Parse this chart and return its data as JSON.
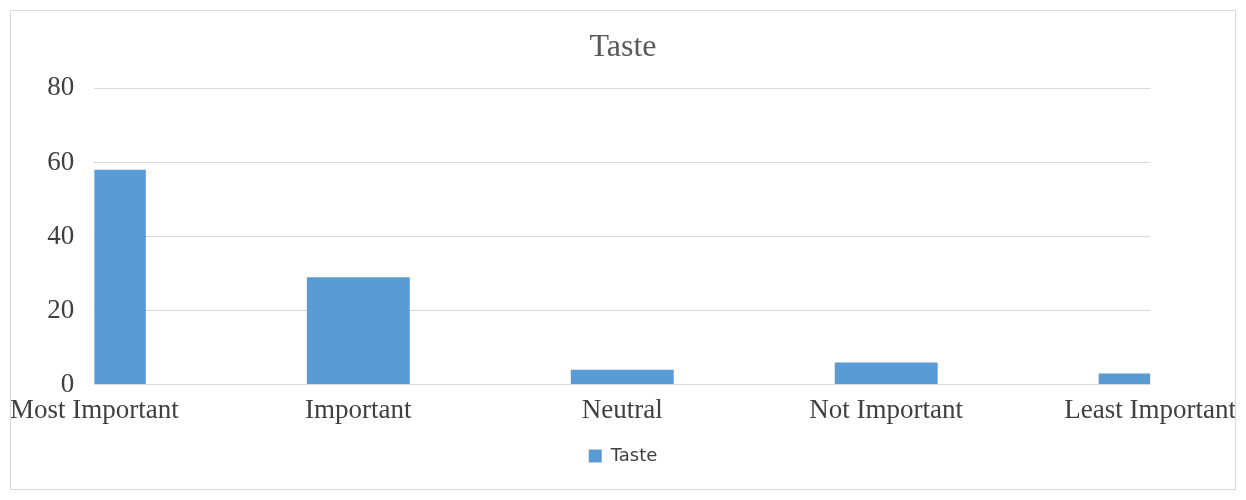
{
  "chart_data": {
    "type": "bar",
    "title": "Taste",
    "categories": [
      "Most Important",
      "Important",
      "Neutral",
      "Not Important",
      "Least Important"
    ],
    "series": [
      {
        "name": "Taste",
        "color": "#5b9bd5",
        "values": [
          58,
          29,
          4,
          6,
          3
        ]
      }
    ],
    "ylim": [
      0,
      80
    ],
    "yticks": [
      0,
      20,
      40,
      60,
      80
    ],
    "grid": "y",
    "legend": "bottom"
  }
}
